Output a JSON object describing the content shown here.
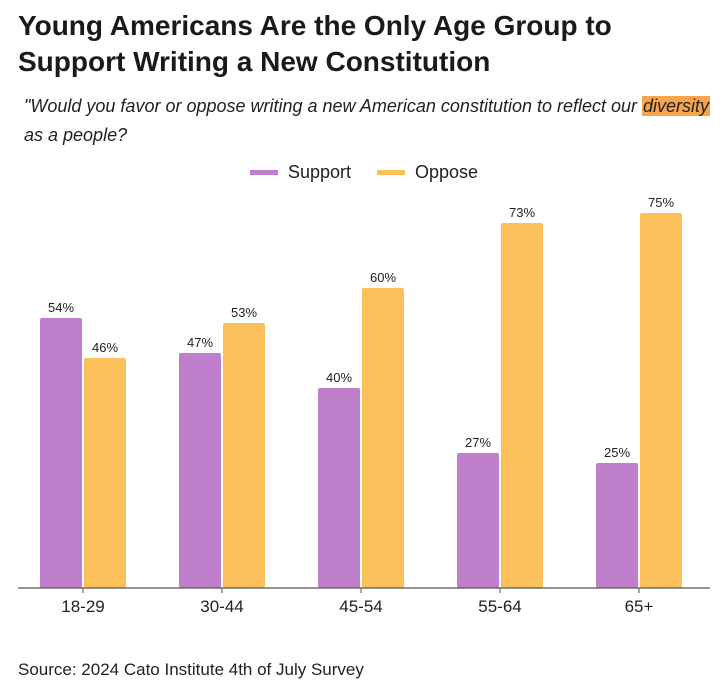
{
  "chart_data": {
    "type": "bar",
    "title": "Young Americans Are the Only Age Group to Support Writing a New Constitution",
    "subtitle": {
      "before": "\"Would you favor or oppose writing a new American constitution to reflect our ",
      "highlight": "diversity",
      "after": " as a people?"
    },
    "categories": [
      "18-29",
      "30-44",
      "45-54",
      "55-64",
      "65+"
    ],
    "series": [
      {
        "name": "Support",
        "color": "#c07fcc",
        "values": [
          54,
          47,
          40,
          27,
          25
        ]
      },
      {
        "name": "Oppose",
        "color": "#fbc05a",
        "values": [
          46,
          53,
          60,
          73,
          75
        ]
      }
    ],
    "value_suffix": "%",
    "ylim": [
      0,
      80
    ],
    "legend": "top-center",
    "grid": false
  },
  "source": "Source: 2024 Cato Institute 4th of July Survey",
  "colors": {
    "highlight": "#f7a44a",
    "axis": "#555555"
  }
}
